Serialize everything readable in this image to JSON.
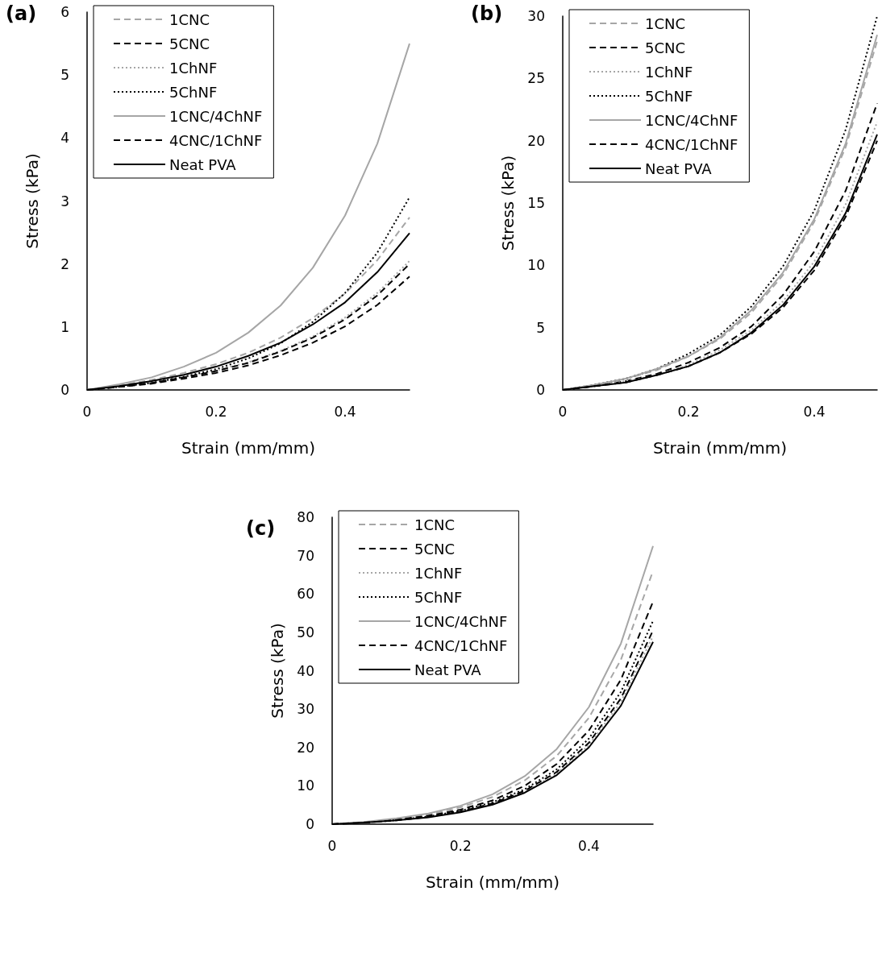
{
  "chart_data": [
    {
      "type": "line",
      "title": "(a)",
      "xlabel": "Strain (mm/mm)",
      "ylabel": "Stress (kPa)",
      "xlim": [
        0,
        0.5
      ],
      "xticks": [
        0,
        0.2,
        0.4
      ],
      "ylim": [
        0,
        6
      ],
      "yticks": [
        0,
        1,
        2,
        3,
        4,
        5,
        6
      ],
      "grid": false,
      "legend": "top left",
      "marker": "none",
      "x": [
        0,
        0.05,
        0.1,
        0.15,
        0.2,
        0.25,
        0.3,
        0.35,
        0.4,
        0.45,
        0.5
      ],
      "series": [
        {
          "name": "1CNC",
          "color": "#a6a6a6",
          "line_style": "dashed",
          "values": [
            0,
            0.07,
            0.16,
            0.27,
            0.41,
            0.59,
            0.83,
            1.14,
            1.53,
            2.06,
            2.74
          ]
        },
        {
          "name": "5CNC",
          "color": "#000000",
          "line_style": "dashed",
          "values": [
            0,
            0.05,
            0.1,
            0.18,
            0.27,
            0.39,
            0.55,
            0.75,
            1.01,
            1.35,
            1.8
          ]
        },
        {
          "name": "1ChNF",
          "color": "#a6a6a6",
          "line_style": "dotted",
          "values": [
            0,
            0.05,
            0.12,
            0.2,
            0.31,
            0.44,
            0.62,
            0.85,
            1.15,
            1.54,
            2.05
          ]
        },
        {
          "name": "5ChNF",
          "color": "#000000",
          "line_style": "dotted",
          "values": [
            0,
            0.05,
            0.11,
            0.21,
            0.33,
            0.5,
            0.74,
            1.08,
            1.54,
            2.18,
            3.06
          ]
        },
        {
          "name": "1CNC/4ChNF",
          "color": "#a6a6a6",
          "line_style": "solid",
          "values": [
            0,
            0.09,
            0.2,
            0.37,
            0.59,
            0.91,
            1.34,
            1.94,
            2.77,
            3.91,
            5.5
          ]
        },
        {
          "name": "4CNC/1ChNF",
          "color": "#000000",
          "line_style": "dashed",
          "values": [
            0,
            0.05,
            0.11,
            0.2,
            0.3,
            0.43,
            0.61,
            0.83,
            1.12,
            1.5,
            2.0
          ]
        },
        {
          "name": "Neat PVA",
          "color": "#000000",
          "line_style": "solid",
          "values": [
            0,
            0.06,
            0.14,
            0.24,
            0.37,
            0.54,
            0.75,
            1.04,
            1.39,
            1.87,
            2.49
          ]
        }
      ]
    },
    {
      "type": "line",
      "title": "(b)",
      "xlabel": "Strain (mm/mm)",
      "ylabel": "Stress (kPa)",
      "xlim": [
        0,
        0.5
      ],
      "xticks": [
        0,
        0.2,
        0.4
      ],
      "ylim": [
        0,
        30
      ],
      "yticks": [
        0,
        5,
        10,
        15,
        20,
        25,
        30
      ],
      "grid": false,
      "legend": "top left",
      "marker": "none",
      "x": [
        0,
        0.05,
        0.1,
        0.15,
        0.2,
        0.25,
        0.3,
        0.35,
        0.4,
        0.45,
        0.5
      ],
      "series": [
        {
          "name": "1CNC",
          "color": "#a6a6a6",
          "line_style": "dashed",
          "values": [
            0,
            0.4,
            0.9,
            1.6,
            2.7,
            4.1,
            6.2,
            9.2,
            13.5,
            19.5,
            28
          ]
        },
        {
          "name": "5CNC",
          "color": "#000000",
          "line_style": "dashed",
          "values": [
            0,
            0.3,
            0.7,
            1.3,
            2.2,
            3.4,
            5.1,
            7.6,
            11.1,
            16.0,
            23
          ]
        },
        {
          "name": "1ChNF",
          "color": "#a6a6a6",
          "line_style": "dotted",
          "values": [
            0,
            0.3,
            0.7,
            1.2,
            2.0,
            3.2,
            4.8,
            7.1,
            10.3,
            14.9,
            21.5
          ]
        },
        {
          "name": "5ChNF",
          "color": "#000000",
          "line_style": "dotted",
          "values": [
            0,
            0.4,
            0.9,
            1.7,
            2.9,
            4.4,
            6.7,
            9.9,
            14.4,
            20.9,
            30
          ]
        },
        {
          "name": "1CNC/4ChNF",
          "color": "#a6a6a6",
          "line_style": "solid",
          "values": [
            0,
            0.4,
            0.9,
            1.7,
            2.7,
            4.2,
            6.4,
            9.4,
            13.7,
            19.8,
            28.5
          ]
        },
        {
          "name": "4CNC/1ChNF",
          "color": "#000000",
          "line_style": "dashed",
          "values": [
            0,
            0.3,
            0.6,
            1.2,
            1.9,
            3.0,
            4.5,
            6.6,
            9.6,
            13.9,
            20
          ]
        },
        {
          "name": "Neat PVA",
          "color": "#000000",
          "line_style": "solid",
          "values": [
            0,
            0.3,
            0.6,
            1.2,
            1.9,
            3.0,
            4.6,
            6.8,
            9.9,
            14.2,
            20.5
          ]
        }
      ]
    },
    {
      "type": "line",
      "title": "(c)",
      "xlabel": "Strain (mm/mm)",
      "ylabel": "Stress (kPa)",
      "xlim": [
        0,
        0.5
      ],
      "xticks": [
        0,
        0.2,
        0.4
      ],
      "ylim": [
        0,
        80
      ],
      "yticks": [
        0,
        10,
        20,
        30,
        40,
        50,
        60,
        70,
        80
      ],
      "grid": false,
      "legend": "top left",
      "marker": "none",
      "x": [
        0,
        0.05,
        0.1,
        0.15,
        0.2,
        0.25,
        0.3,
        0.35,
        0.4,
        0.45,
        0.5
      ],
      "series": [
        {
          "name": "1CNC",
          "color": "#a6a6a6",
          "line_style": "dashed",
          "values": [
            0,
            0.5,
            1.3,
            2.5,
            4.4,
            7.1,
            11.4,
            17.8,
            27.7,
            42.9,
            66
          ]
        },
        {
          "name": "5CNC",
          "color": "#000000",
          "line_style": "dashed",
          "values": [
            0,
            0.5,
            1.2,
            2.2,
            3.8,
            6.2,
            10.0,
            15.7,
            24.4,
            37.7,
            58
          ]
        },
        {
          "name": "1ChNF",
          "color": "#a6a6a6",
          "line_style": "dotted",
          "values": [
            0,
            0.4,
            1.0,
            1.9,
            3.2,
            5.2,
            8.4,
            13.2,
            20.6,
            31.9,
            49
          ]
        },
        {
          "name": "5ChNF",
          "color": "#000000",
          "line_style": "dotted",
          "values": [
            0,
            0.4,
            1.1,
            2.0,
            3.5,
            5.7,
            9.1,
            14.3,
            22.3,
            34.5,
            53
          ]
        },
        {
          "name": "1CNC/4ChNF",
          "color": "#a6a6a6",
          "line_style": "solid",
          "values": [
            0,
            0.6,
            1.5,
            2.8,
            4.8,
            7.8,
            12.5,
            19.6,
            30.5,
            47.1,
            72.5
          ]
        },
        {
          "name": "4CNC/1ChNF",
          "color": "#000000",
          "line_style": "dashed",
          "values": [
            0,
            0.4,
            1.0,
            1.9,
            3.3,
            5.4,
            8.7,
            13.6,
            21.2,
            32.8,
            50.5
          ]
        },
        {
          "name": "Neat PVA",
          "color": "#000000",
          "line_style": "solid",
          "values": [
            0,
            0.4,
            1.0,
            1.8,
            3.1,
            5.1,
            8.2,
            12.8,
            20.0,
            30.9,
            47.5
          ]
        }
      ]
    }
  ]
}
